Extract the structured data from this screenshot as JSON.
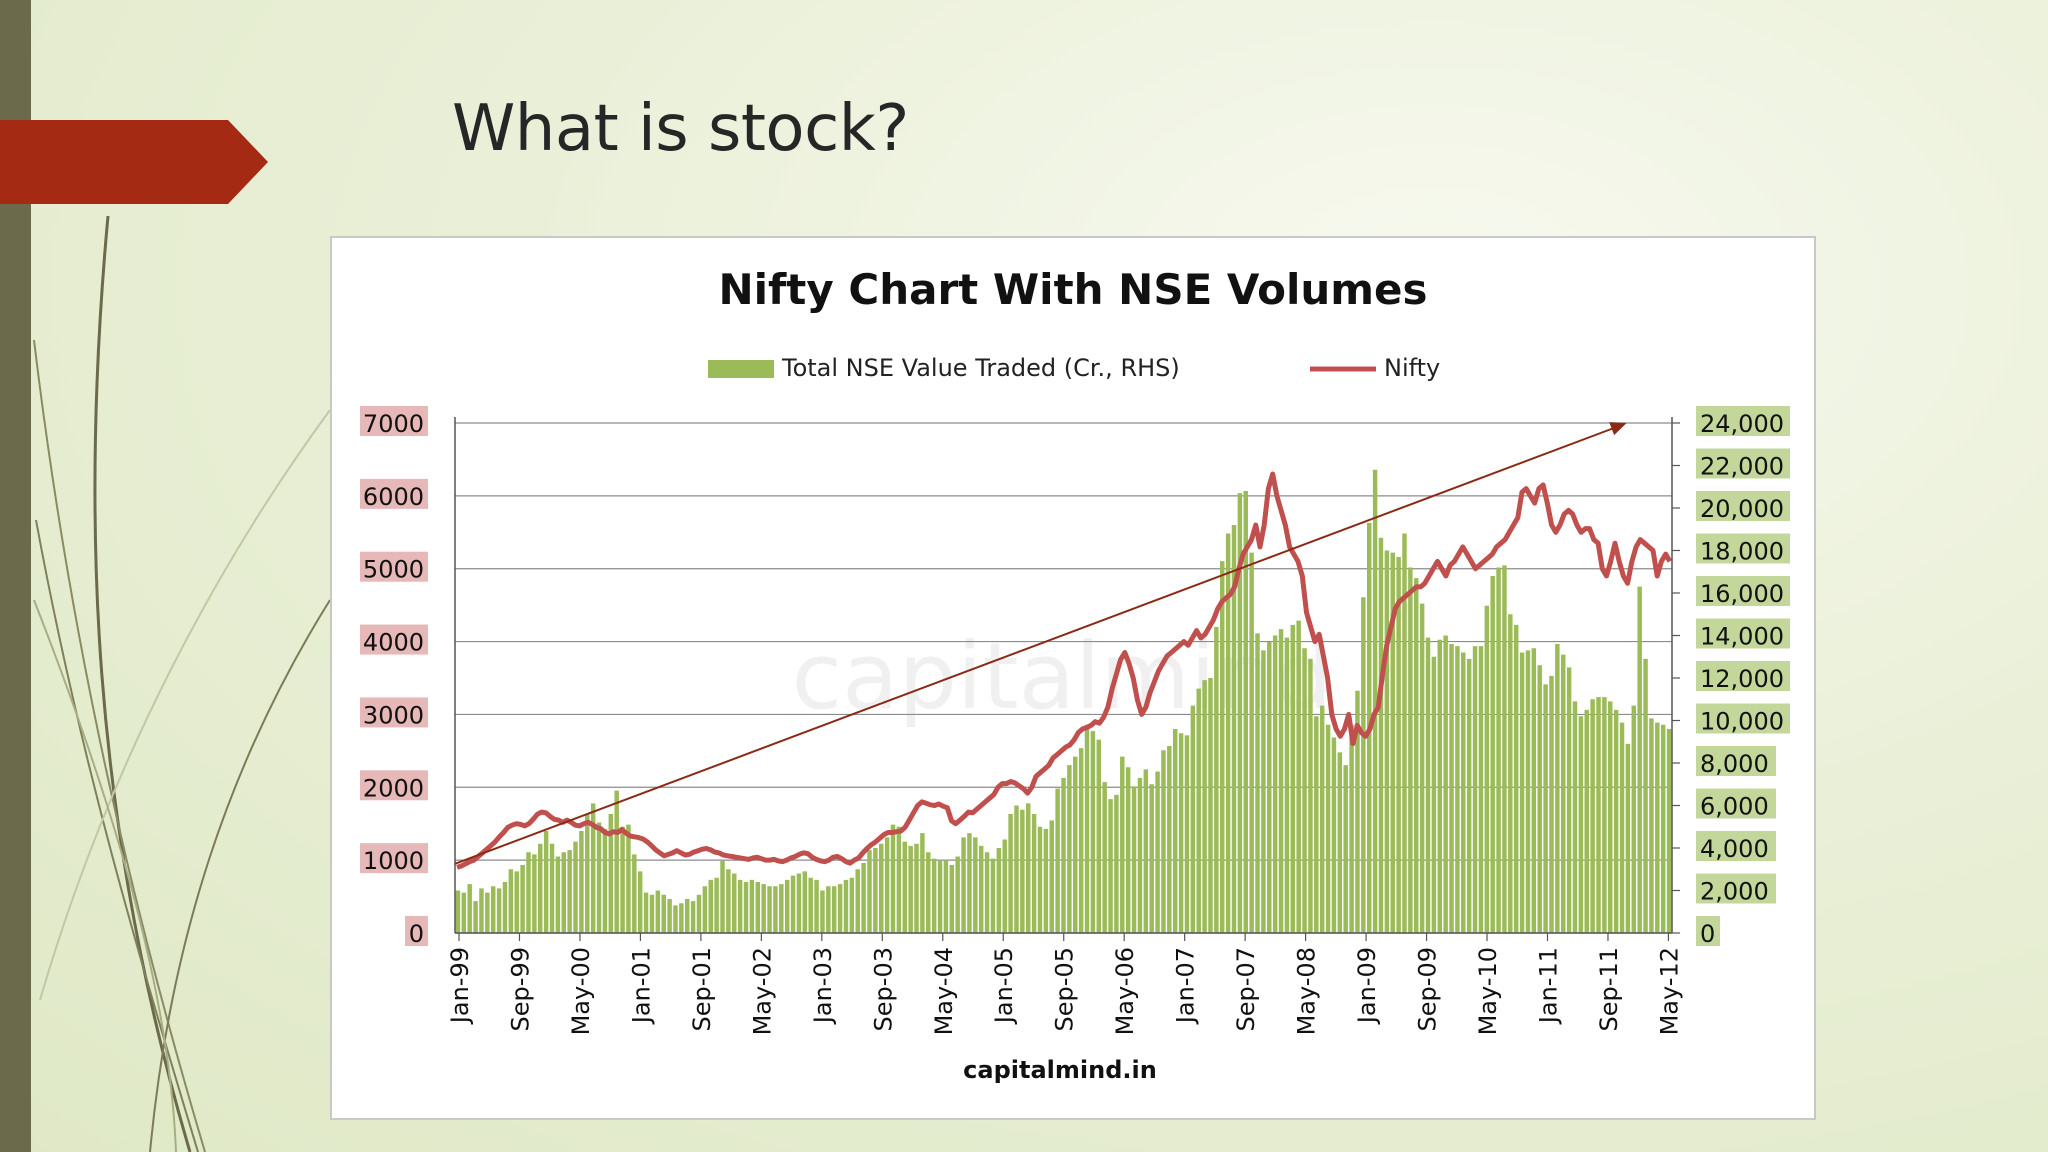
{
  "slide": {
    "title": "What is stock?"
  },
  "colors": {
    "accent_arrow": "#a52a14",
    "sidebar": "#6b6a4b",
    "bars": "#9bbb59",
    "line": "#c0504d",
    "left_label_bg": "#e6b9b8",
    "right_label_bg": "#c4d79b",
    "trend_arrow": "#8b2a14"
  },
  "chart_data": {
    "type": "bar+line",
    "title": "Nifty Chart With NSE Volumes",
    "watermark": "capitalmind",
    "source": "capitalmind.in",
    "legend": {
      "placement": "top",
      "bar_label": "Total NSE Value Traded (Cr., RHS)",
      "line_label": "Nifty"
    },
    "x_tick_labels": [
      "Jan-99",
      "Sep-99",
      "May-00",
      "Jan-01",
      "Sep-01",
      "May-02",
      "Jan-03",
      "Sep-03",
      "May-04",
      "Jan-05",
      "Sep-05",
      "May-06",
      "Jan-07",
      "Sep-07",
      "May-08",
      "Jan-09",
      "Sep-09",
      "May-10",
      "Jan-11",
      "Sep-11",
      "May-12"
    ],
    "x_start": "1999-01",
    "x_end": "2012-06",
    "y_left": {
      "min": 0,
      "max": 7000,
      "step": 1000,
      "labels": [
        "0",
        "1000",
        "2000",
        "3000",
        "4000",
        "5000",
        "6000",
        "7000"
      ]
    },
    "y_right": {
      "min": 0,
      "max": 24000,
      "step": 2000,
      "labels": [
        "0",
        "2,000",
        "4,000",
        "6,000",
        "8,000",
        "10,000",
        "12,000",
        "14,000",
        "16,000",
        "18,000",
        "20,000",
        "22,000",
        "24,000"
      ]
    },
    "grid": true,
    "bars_volume": [
      2000,
      1900,
      2300,
      1500,
      2100,
      1900,
      2200,
      2100,
      2400,
      3000,
      2900,
      3200,
      3800,
      3700,
      4200,
      4800,
      4200,
      3600,
      3800,
      3900,
      4300,
      4800,
      5600,
      6100,
      5200,
      4900,
      5600,
      6700,
      5000,
      5100,
      3700,
      2900,
      1900,
      1800,
      2000,
      1800,
      1600,
      1300,
      1400,
      1600,
      1500,
      1800,
      2200,
      2500,
      2600,
      3400,
      3000,
      2800,
      2500,
      2400,
      2500,
      2400,
      2300,
      2200,
      2200,
      2300,
      2500,
      2700,
      2800,
      2900,
      2600,
      2500,
      2000,
      2200,
      2200,
      2300,
      2500,
      2600,
      3000,
      3300,
      3900,
      4000,
      4200,
      4500,
      5100,
      5000,
      4300,
      4100,
      4200,
      4700,
      3800,
      3500,
      3400,
      3400,
      3200,
      3600,
      4500,
      4700,
      4500,
      4100,
      3800,
      3500,
      4000,
      4400,
      5600,
      6000,
      5800,
      6100,
      5600,
      5000,
      4900,
      5300,
      6800,
      7300,
      7900,
      8300,
      8700,
      9800,
      9500,
      9100,
      7100,
      6300,
      6500,
      8300,
      7800,
      6900,
      7300,
      7700,
      7000,
      7600,
      8600,
      8800,
      9600,
      9400,
      9300,
      10700,
      11500,
      11900,
      12000,
      14400,
      17500,
      18800,
      19200,
      20700,
      20800,
      17900,
      14100,
      13300,
      13700,
      14000,
      14300,
      13900,
      14500,
      14700,
      13400,
      12900,
      10200,
      10700,
      9800,
      9200,
      8500,
      7900,
      9800,
      11400,
      15800,
      19300,
      21800,
      18600,
      18000,
      17900,
      17700,
      18800,
      17200,
      16700,
      15500,
      13900,
      13000,
      13800,
      14000,
      13600,
      13500,
      13200,
      12900,
      13500,
      13500,
      15400,
      16800,
      17200,
      17300,
      15000,
      14500,
      13200,
      13300,
      13400,
      12600,
      11700,
      12100,
      13600,
      13100,
      12500,
      10900,
      10200,
      10500,
      11000,
      11100,
      11100,
      10900,
      10500,
      9900,
      8900,
      10700,
      16300,
      12900,
      10100,
      9900,
      9800,
      9600
    ],
    "line_nifty": [
      900,
      920,
      950,
      980,
      1000,
      1050,
      1100,
      1150,
      1200,
      1250,
      1320,
      1380,
      1450,
      1480,
      1500,
      1490,
      1470,
      1500,
      1560,
      1630,
      1660,
      1650,
      1600,
      1560,
      1550,
      1520,
      1550,
      1520,
      1480,
      1470,
      1500,
      1520,
      1490,
      1450,
      1430,
      1380,
      1360,
      1390,
      1380,
      1420,
      1370,
      1330,
      1320,
      1310,
      1290,
      1250,
      1200,
      1140,
      1100,
      1060,
      1080,
      1100,
      1130,
      1100,
      1070,
      1080,
      1110,
      1130,
      1150,
      1160,
      1140,
      1110,
      1100,
      1070,
      1060,
      1050,
      1040,
      1030,
      1020,
      1010,
      1030,
      1040,
      1020,
      1000,
      1000,
      1010,
      990,
      980,
      1000,
      1030,
      1050,
      1080,
      1100,
      1090,
      1040,
      1010,
      990,
      980,
      1000,
      1040,
      1050,
      1020,
      980,
      960,
      1000,
      1030,
      1100,
      1160,
      1210,
      1250,
      1300,
      1350,
      1380,
      1380,
      1390,
      1400,
      1450,
      1550,
      1650,
      1750,
      1800,
      1780,
      1760,
      1750,
      1770,
      1740,
      1720,
      1540,
      1500,
      1550,
      1600,
      1660,
      1650,
      1700,
      1750,
      1800,
      1850,
      1900,
      2000,
      2050,
      2050,
      2080,
      2060,
      2020,
      1980,
      1920,
      2000,
      2150,
      2200,
      2250,
      2300,
      2400,
      2450,
      2500,
      2550,
      2580,
      2650,
      2750,
      2800,
      2820,
      2850,
      2900,
      2880,
      2960,
      3100,
      3350,
      3550,
      3750,
      3850,
      3700,
      3500,
      3200,
      3000,
      3100,
      3300,
      3450,
      3600,
      3700,
      3800,
      3850,
      3900,
      3950,
      4000,
      3950,
      4050,
      4150,
      4050,
      4100,
      4200,
      4300,
      4450,
      4550,
      4600,
      4650,
      4750,
      5000,
      5200,
      5300,
      5400,
      5600,
      5300,
      5600,
      6100,
      6300,
      6000,
      5800,
      5600,
      5300,
      5200,
      5100,
      4900,
      4400,
      4200,
      4000,
      4100,
      3800,
      3500,
      3000,
      2800,
      2700,
      2800,
      3000,
      2600,
      2850,
      2750,
      2700,
      2800,
      3000,
      3100,
      3550,
      3950,
      4200,
      4450,
      4550,
      4600,
      4650,
      4700,
      4750,
      4750,
      4800,
      4900,
      5000,
      5100,
      5000,
      4900,
      5050,
      5100,
      5200,
      5300,
      5200,
      5100,
      5000,
      5050,
      5100,
      5150,
      5200,
      5300,
      5350,
      5400,
      5500,
      5600,
      5700,
      6050,
      6100,
      6000,
      5900,
      6100,
      6150,
      5900,
      5600,
      5500,
      5600,
      5750,
      5800,
      5750,
      5600,
      5500,
      5550,
      5550,
      5400,
      5350,
      5000,
      4900,
      5100,
      5350,
      5100,
      4900,
      4800,
      5100,
      5300,
      5400,
      5350,
      5300,
      5250,
      4900,
      5100,
      5200,
      5100
    ],
    "annotation": {
      "type": "trend-arrow",
      "from": {
        "x": "1999-01",
        "y_left": 950
      },
      "to": {
        "x": "2011-12",
        "y_left": 7000
      }
    }
  }
}
